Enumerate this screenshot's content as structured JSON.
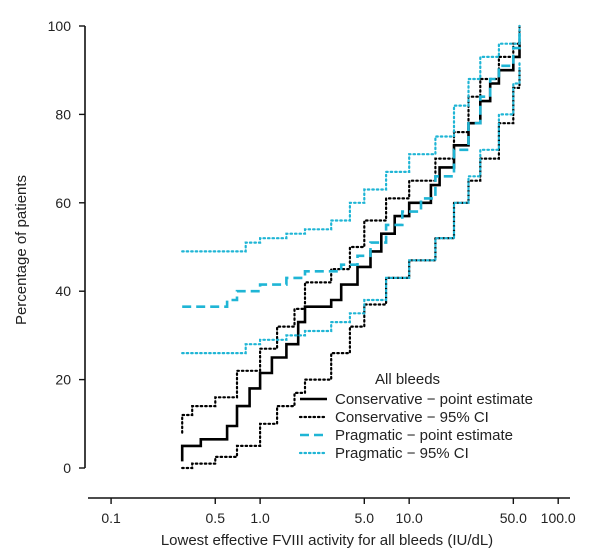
{
  "chart_data": {
    "type": "line",
    "xlabel": "Lowest effective FVIII activity for all bleeds (IU/dL)",
    "ylabel": "Percentage of patients",
    "x_scale": "log",
    "xlim": [
      0.07,
      120
    ],
    "ylim": [
      0,
      100
    ],
    "x_ticks": [
      {
        "value": 0.1,
        "label": "0.1"
      },
      {
        "value": 0.5,
        "label": "0.5"
      },
      {
        "value": 1.0,
        "label": "1.0"
      },
      {
        "value": 5.0,
        "label": "5.0"
      },
      {
        "value": 10.0,
        "label": "10.0"
      },
      {
        "value": 50.0,
        "label": "50.0"
      },
      {
        "value": 100.0,
        "label": "100.0"
      }
    ],
    "y_ticks": [
      {
        "value": 0,
        "label": "0"
      },
      {
        "value": 20,
        "label": "20"
      },
      {
        "value": 40,
        "label": "40"
      },
      {
        "value": 60,
        "label": "60"
      },
      {
        "value": 80,
        "label": "80"
      },
      {
        "value": 100,
        "label": "100"
      }
    ],
    "grid": false,
    "legend": {
      "title": "All bleeds",
      "position": "bottom-right"
    },
    "series": [
      {
        "name": "Conservative − point estimate",
        "color": "#000000",
        "style": "solid",
        "points": [
          [
            0.3,
            1.5
          ],
          [
            0.3,
            5
          ],
          [
            0.4,
            5
          ],
          [
            0.4,
            6.5
          ],
          [
            0.55,
            6.5
          ],
          [
            0.6,
            9.5
          ],
          [
            0.7,
            14
          ],
          [
            0.85,
            18
          ],
          [
            1.0,
            21.5
          ],
          [
            1.2,
            25
          ],
          [
            1.5,
            28
          ],
          [
            1.8,
            33
          ],
          [
            2.0,
            36.5
          ],
          [
            2.5,
            36.5
          ],
          [
            3.0,
            38
          ],
          [
            3.5,
            41.5
          ],
          [
            4.5,
            45.5
          ],
          [
            5.5,
            49
          ],
          [
            6.5,
            53
          ],
          [
            8.0,
            57
          ],
          [
            10.0,
            60
          ],
          [
            12.0,
            60
          ],
          [
            14.0,
            64
          ],
          [
            16.0,
            68
          ],
          [
            20.0,
            73
          ],
          [
            25.0,
            78
          ],
          [
            30.0,
            83
          ],
          [
            35.0,
            87
          ],
          [
            40.0,
            90
          ],
          [
            50.0,
            93
          ],
          [
            55.0,
            96.5
          ]
        ]
      },
      {
        "name": "Conservative − 95% CI",
        "color": "#000000",
        "style": "dotted",
        "points_upper": [
          [
            0.3,
            8
          ],
          [
            0.3,
            12
          ],
          [
            0.35,
            14
          ],
          [
            0.5,
            16
          ],
          [
            0.7,
            22
          ],
          [
            1.0,
            27
          ],
          [
            1.3,
            32
          ],
          [
            1.7,
            36
          ],
          [
            2.0,
            42
          ],
          [
            3.0,
            45
          ],
          [
            4.0,
            50
          ],
          [
            5.0,
            56
          ],
          [
            7.0,
            61
          ],
          [
            10.0,
            65
          ],
          [
            15.0,
            70
          ],
          [
            20.0,
            76
          ],
          [
            25.0,
            84
          ],
          [
            30.0,
            88
          ],
          [
            40.0,
            93
          ],
          [
            50.0,
            96
          ],
          [
            55.0,
            100
          ]
        ],
        "points_lower": [
          [
            0.3,
            0
          ],
          [
            0.35,
            1
          ],
          [
            0.5,
            2.5
          ],
          [
            0.7,
            5
          ],
          [
            1.0,
            10
          ],
          [
            1.3,
            14
          ],
          [
            1.7,
            17
          ],
          [
            2.0,
            20
          ],
          [
            3.0,
            26
          ],
          [
            4.0,
            32
          ],
          [
            5.0,
            37
          ],
          [
            7.0,
            43
          ],
          [
            10.0,
            47
          ],
          [
            15.0,
            52
          ],
          [
            20.0,
            60
          ],
          [
            25.0,
            65
          ],
          [
            30.0,
            70
          ],
          [
            40.0,
            78
          ],
          [
            50.0,
            86
          ],
          [
            55.0,
            90
          ]
        ]
      },
      {
        "name": "Pragmatic − point estimate",
        "color": "#1fb5d5",
        "style": "dashed",
        "points": [
          [
            0.3,
            36.5
          ],
          [
            0.6,
            36.5
          ],
          [
            0.6,
            38
          ],
          [
            0.7,
            40
          ],
          [
            1.0,
            41.5
          ],
          [
            1.5,
            43
          ],
          [
            2.0,
            44.5
          ],
          [
            3.5,
            46
          ],
          [
            4.5,
            48
          ],
          [
            5.5,
            51
          ],
          [
            7.0,
            55
          ],
          [
            9.0,
            58
          ],
          [
            12.0,
            61
          ],
          [
            15.0,
            66
          ],
          [
            20.0,
            72
          ],
          [
            25.0,
            78
          ],
          [
            30.0,
            84
          ],
          [
            35.0,
            88
          ],
          [
            40.0,
            91
          ],
          [
            50.0,
            95
          ],
          [
            55.0,
            99
          ]
        ]
      },
      {
        "name": "Pragmatic − 95% CI",
        "color": "#1fb5d5",
        "style": "dotted",
        "points_upper": [
          [
            0.3,
            49
          ],
          [
            0.6,
            49
          ],
          [
            0.8,
            51
          ],
          [
            1.0,
            52
          ],
          [
            1.5,
            53
          ],
          [
            2.0,
            54
          ],
          [
            3.0,
            56
          ],
          [
            4.0,
            60
          ],
          [
            5.0,
            63
          ],
          [
            7.0,
            67
          ],
          [
            10.0,
            71
          ],
          [
            15.0,
            75
          ],
          [
            20.0,
            82
          ],
          [
            25.0,
            88
          ],
          [
            30.0,
            93
          ],
          [
            40.0,
            96
          ],
          [
            55.0,
            100
          ]
        ],
        "points_lower": [
          [
            0.3,
            26
          ],
          [
            0.65,
            26
          ],
          [
            0.8,
            28
          ],
          [
            1.0,
            29
          ],
          [
            1.5,
            30
          ],
          [
            2.0,
            31
          ],
          [
            3.0,
            33
          ],
          [
            4.0,
            35
          ],
          [
            5.0,
            38
          ],
          [
            7.0,
            43
          ],
          [
            10.0,
            47
          ],
          [
            15.0,
            52
          ],
          [
            20.0,
            60
          ],
          [
            25.0,
            66
          ],
          [
            30.0,
            72
          ],
          [
            40.0,
            80
          ],
          [
            50.0,
            87
          ],
          [
            55.0,
            92
          ]
        ]
      }
    ]
  }
}
